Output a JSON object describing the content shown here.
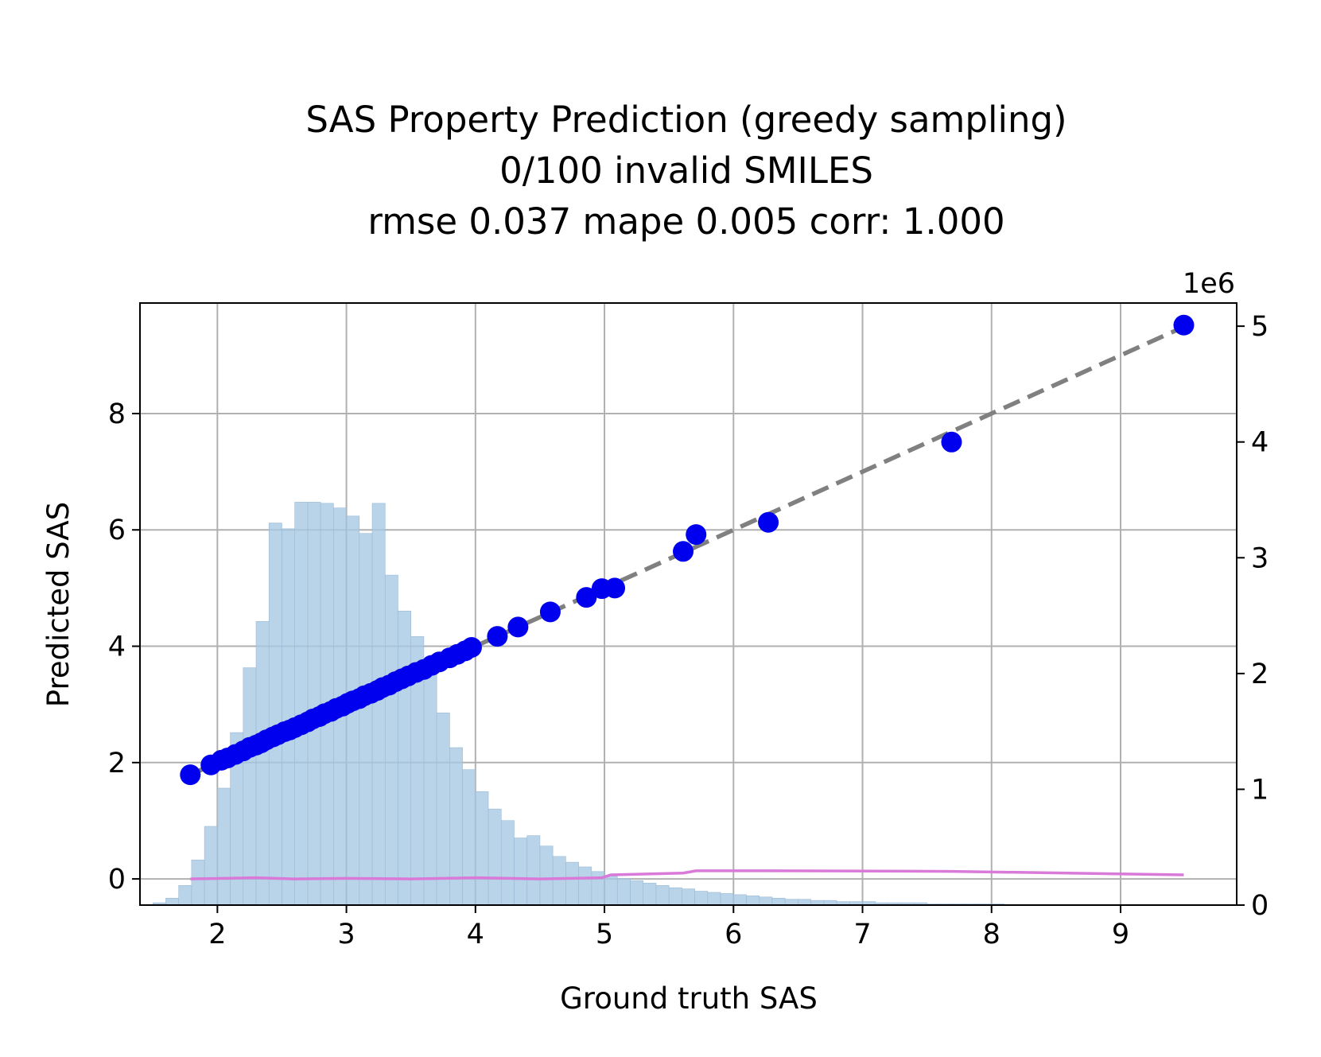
{
  "chart_data": {
    "type": "scatter",
    "title": "SAS Property Prediction (greedy sampling)",
    "subtitle_lines": [
      "0/100 invalid SMILES",
      "rmse 0.037 mape 0.005 corr: 1.000"
    ],
    "xlabel": "Ground truth SAS",
    "ylabel": "Predicted SAS",
    "xlim": [
      1.4,
      9.9
    ],
    "ylim": [
      -0.45,
      9.9
    ],
    "x_ticks": [
      "2",
      "3",
      "4",
      "5",
      "6",
      "7",
      "8",
      "9"
    ],
    "y_ticks": [
      "0",
      "2",
      "4",
      "6",
      "8"
    ],
    "y2_ticks": [
      "0",
      "1",
      "2",
      "3",
      "4",
      "5"
    ],
    "y2_offset_label": "1e6",
    "y2_lim": [
      0,
      5.2
    ],
    "grid": true,
    "colors": {
      "scatter": "#0000ee",
      "identity_line": "#808080",
      "histogram": "#a8c8e3",
      "error_line": "#d97ad9"
    },
    "series": [
      {
        "kind": "scatter",
        "x": [
          1.79,
          1.95,
          2.03,
          2.08,
          2.14,
          2.2,
          2.25,
          2.3,
          2.34,
          2.38,
          2.43,
          2.47,
          2.52,
          2.56,
          2.6,
          2.65,
          2.7,
          2.74,
          2.79,
          2.83,
          2.88,
          2.92,
          2.97,
          3.01,
          3.05,
          3.1,
          3.14,
          3.19,
          3.24,
          3.28,
          3.33,
          3.38,
          3.43,
          3.48,
          3.54,
          3.6,
          3.66,
          3.72,
          3.8,
          3.86,
          3.92,
          3.97,
          4.17,
          4.33,
          4.58,
          4.86,
          4.98,
          5.08,
          5.61,
          5.71,
          6.27,
          7.69,
          9.49
        ],
        "y": [
          1.79,
          1.96,
          2.04,
          2.08,
          2.14,
          2.2,
          2.26,
          2.3,
          2.34,
          2.39,
          2.44,
          2.48,
          2.53,
          2.56,
          2.6,
          2.65,
          2.7,
          2.75,
          2.79,
          2.84,
          2.88,
          2.93,
          2.97,
          3.02,
          3.06,
          3.1,
          3.15,
          3.19,
          3.24,
          3.29,
          3.33,
          3.39,
          3.44,
          3.49,
          3.55,
          3.6,
          3.67,
          3.73,
          3.8,
          3.86,
          3.92,
          3.98,
          4.17,
          4.33,
          4.59,
          4.84,
          4.99,
          5.0,
          5.63,
          5.92,
          6.13,
          7.51,
          9.52
        ]
      },
      {
        "kind": "identity_line",
        "x": [
          1.79,
          9.49
        ],
        "y": [
          1.79,
          9.49
        ]
      },
      {
        "kind": "histogram",
        "axis": "right",
        "bin_width": 0.1,
        "bin_start": 1.4,
        "counts_1e6": [
          0.0,
          0.02,
          0.06,
          0.17,
          0.39,
          0.68,
          1.01,
          1.49,
          2.05,
          2.45,
          3.3,
          3.25,
          3.48,
          3.48,
          3.47,
          3.43,
          3.36,
          3.21,
          3.47,
          2.85,
          2.54,
          2.32,
          2.01,
          1.66,
          1.36,
          1.17,
          0.98,
          0.83,
          0.73,
          0.58,
          0.6,
          0.51,
          0.42,
          0.37,
          0.33,
          0.29,
          0.25,
          0.23,
          0.21,
          0.19,
          0.17,
          0.15,
          0.14,
          0.12,
          0.11,
          0.1,
          0.09,
          0.08,
          0.07,
          0.06,
          0.05,
          0.05,
          0.04,
          0.04,
          0.03,
          0.03,
          0.03,
          0.02,
          0.02,
          0.02,
          0.02,
          0.01,
          0.01,
          0.01,
          0.01,
          0.01,
          0.01,
          0.0,
          0.0,
          0.0,
          0.0,
          0.0,
          0.0,
          0.0,
          0.0,
          0.0,
          0.0,
          0.0,
          0.0,
          0.0,
          0.0,
          0.0,
          0.0,
          0.0
        ]
      },
      {
        "kind": "error_line",
        "x": [
          1.79,
          2.3,
          2.6,
          3.0,
          3.5,
          4.0,
          4.5,
          4.98,
          5.05,
          5.61,
          5.71,
          6.27,
          7.69,
          9.49
        ],
        "y": [
          0.0,
          0.02,
          0.0,
          0.01,
          0.0,
          0.02,
          0.0,
          0.02,
          0.07,
          0.1,
          0.14,
          0.14,
          0.13,
          0.07
        ]
      }
    ]
  }
}
